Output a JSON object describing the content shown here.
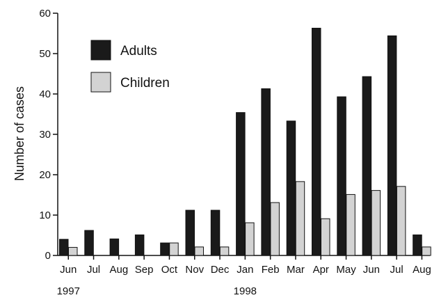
{
  "chart_data": {
    "type": "bar",
    "title": "",
    "xlabel": "",
    "ylabel": "Number of cases",
    "ylim": [
      0,
      60
    ],
    "yticks": [
      0,
      10,
      20,
      30,
      40,
      50,
      60
    ],
    "grid": false,
    "legend_position": "top-left",
    "categories": [
      "Jun",
      "Jul",
      "Aug",
      "Sep",
      "Oct",
      "Nov",
      "Dec",
      "Jan",
      "Feb",
      "Mar",
      "Apr",
      "May",
      "Jun",
      "Jul",
      "Aug"
    ],
    "year_labels": [
      {
        "category_index": 0,
        "label": "1997"
      },
      {
        "category_index": 7,
        "label": "1998"
      }
    ],
    "series": [
      {
        "name": "Adults",
        "color": "#1a1a1a",
        "values": [
          4,
          6.2,
          4.1,
          5.1,
          3.1,
          11.2,
          11.2,
          35.4,
          41.3,
          33.3,
          56.3,
          39.3,
          44.3,
          54.4,
          5.1
        ]
      },
      {
        "name": "Children",
        "color": "#d3d3d3",
        "values": [
          2,
          0,
          0,
          0,
          3.1,
          2.1,
          2.1,
          8.1,
          13.1,
          18.3,
          9.1,
          15.1,
          16.1,
          17.1,
          2.1
        ]
      }
    ]
  }
}
